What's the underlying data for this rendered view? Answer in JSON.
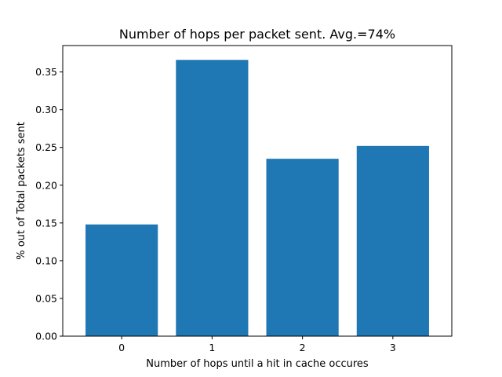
{
  "chart_data": {
    "type": "bar",
    "title": "Number of hops per packet sent. Avg.=74%",
    "xlabel": "Number of hops until a hit in cache occures",
    "ylabel": "% out of Total packets sent",
    "categories": [
      "0",
      "1",
      "2",
      "3"
    ],
    "values": [
      0.148,
      0.366,
      0.235,
      0.252
    ],
    "ylim": [
      0,
      0.385
    ],
    "yticks": [
      0.0,
      0.05,
      0.1,
      0.15,
      0.2,
      0.25,
      0.3,
      0.35
    ],
    "ytick_labels": [
      "0.00",
      "0.05",
      "0.10",
      "0.15",
      "0.20",
      "0.25",
      "0.30",
      "0.35"
    ],
    "grid": false,
    "bar_color": "#1f77b4"
  }
}
